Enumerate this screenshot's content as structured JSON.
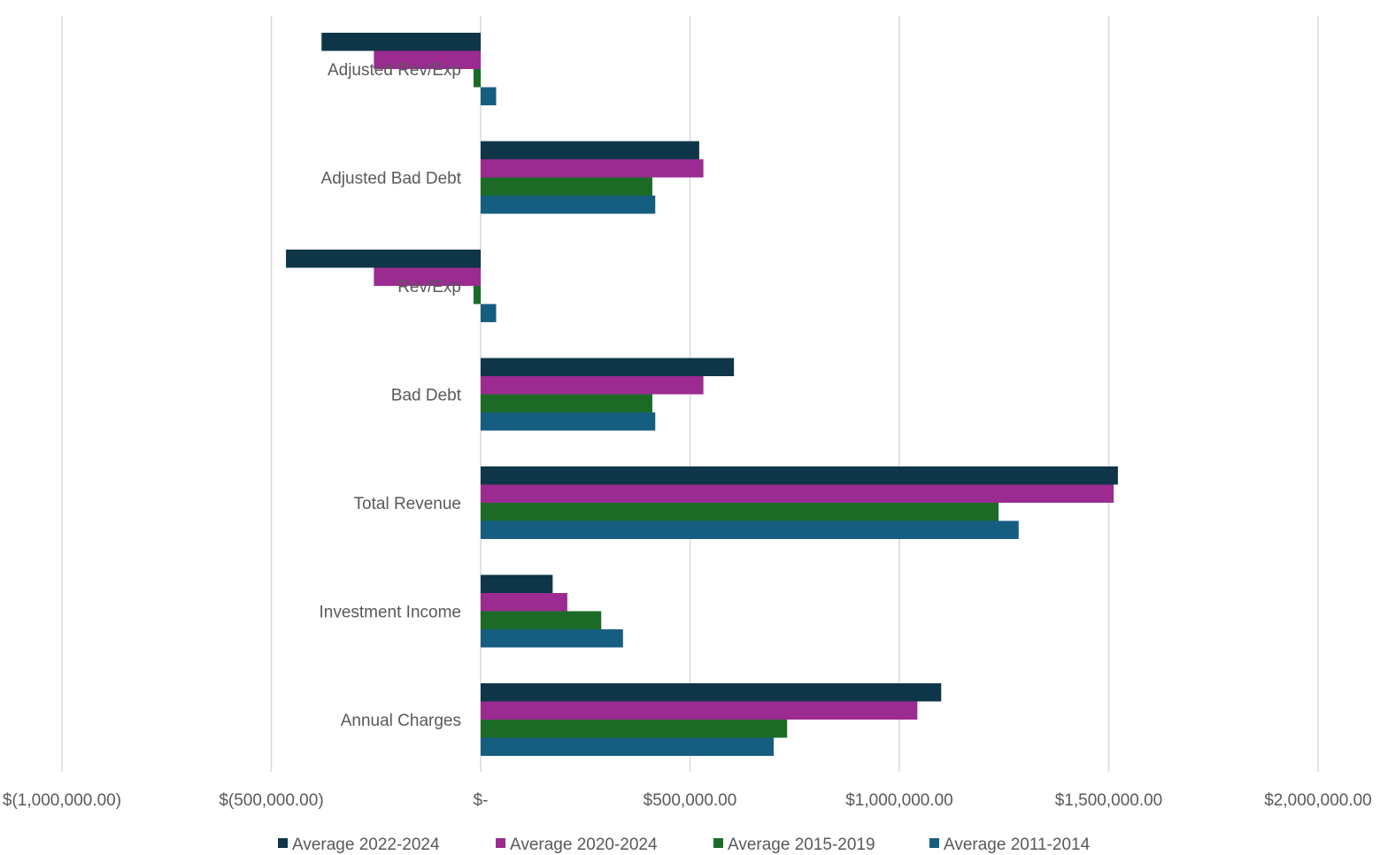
{
  "chart_data": {
    "type": "bar",
    "orientation": "horizontal",
    "categories": [
      "Adjusted Rev/Exp",
      "Adjusted Bad Debt",
      "Rev/Exp",
      "Bad Debt",
      "Total Revenue",
      "Investment Income",
      "Annual Charges"
    ],
    "series": [
      {
        "name": "Average 2022-2024",
        "color": "#0e3548",
        "values": [
          -380000,
          522000,
          -465000,
          605000,
          1522000,
          172000,
          1100000
        ]
      },
      {
        "name": "Average 2020-2024",
        "color": "#9b2b91",
        "values": [
          -255000,
          532000,
          -255000,
          532000,
          1512000,
          207000,
          1043000
        ]
      },
      {
        "name": "Average 2015-2019",
        "color": "#1b6b27",
        "values": [
          -17000,
          410000,
          -17000,
          410000,
          1237000,
          288000,
          732000
        ]
      },
      {
        "name": "Average 2011-2014",
        "color": "#165e80",
        "values": [
          37000,
          417000,
          37000,
          417000,
          1285000,
          340000,
          700000
        ]
      }
    ],
    "xlim": [
      -1000000,
      2000000
    ],
    "xticks": [
      -1000000,
      -500000,
      0,
      500000,
      1000000,
      1500000,
      2000000
    ],
    "xtick_labels": [
      "$(1,000,000.00)",
      "$(500,000.00)",
      "$-",
      "$500,000.00",
      "$1,000,000.00",
      "$1,500,000.00",
      "$2,000,000.00"
    ],
    "title": "",
    "xlabel": "",
    "ylabel": "",
    "grid": "vertical",
    "legend": "bottom"
  }
}
